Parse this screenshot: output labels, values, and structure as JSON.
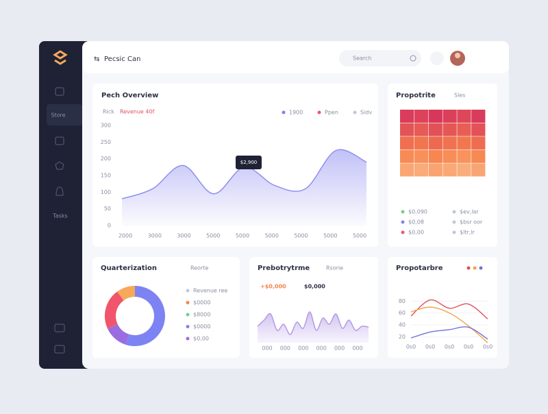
{
  "header": {
    "brand": "Pecsic Can",
    "search": "Search"
  },
  "sidebar": {
    "items": [
      "Store",
      "Tasks"
    ]
  },
  "revenue": {
    "title": "Pech Overview",
    "label": "Rick",
    "highlight": "Revenue 40f",
    "legend": [
      {
        "name": "1900",
        "color": "#7d83f2"
      },
      {
        "name": "Ppen",
        "color": "#f0556b"
      },
      {
        "name": "Sidv",
        "color": "#c3c6d4"
      }
    ],
    "tooltip": "$2,900",
    "chart": {
      "type": "area",
      "categories": [
        "2000",
        "3000",
        "3000",
        "5000",
        "5000",
        "5000",
        "5000",
        "5000",
        "5000"
      ],
      "values": [
        80,
        110,
        180,
        95,
        175,
        120,
        110,
        225,
        190
      ],
      "color": "#8f8ef0",
      "ylim": [
        0,
        300
      ],
      "yticks": [
        0,
        50,
        100,
        150,
        200,
        250,
        300
      ]
    }
  },
  "heatmap": {
    "title": "Propotrite",
    "menu": "Sles",
    "vlim": [
      0,
      100
    ],
    "scale": [
      "#fbd3a8",
      "#f7834c",
      "#d42f5e"
    ],
    "values": [
      [
        92,
        88,
        95,
        90,
        86,
        93
      ],
      [
        78,
        74,
        80,
        76,
        72,
        79
      ],
      [
        62,
        58,
        65,
        60,
        57,
        63
      ],
      [
        45,
        42,
        48,
        44,
        40,
        46
      ],
      [
        28,
        25,
        30,
        27,
        24,
        29
      ]
    ],
    "legend": [
      {
        "name": "$0,090",
        "color": "#6fcf97"
      },
      {
        "name": "$ev,lar",
        "color": "#c3c6d4"
      },
      {
        "name": "$0,08",
        "color": "#7d83f2"
      },
      {
        "name": "$bsr oor",
        "color": "#c3c6d4"
      },
      {
        "name": "$0,00",
        "color": "#f0556b"
      },
      {
        "name": "$ltr,lr",
        "color": "#c3c6d4"
      }
    ]
  },
  "donut": {
    "title": "Quarterization",
    "menu": "Reorte",
    "values": [
      55,
      13,
      22,
      10
    ],
    "colors": [
      "#7d83f2",
      "#9b6ce0",
      "#f0556b",
      "#f7a95b"
    ],
    "legend": [
      {
        "name": "Revenue ree",
        "color": "#c3c6d4"
      },
      {
        "name": "$0000",
        "color": "#f7834c"
      },
      {
        "name": "$8000",
        "color": "#6fcf97"
      },
      {
        "name": "$0000",
        "color": "#7d83f2"
      },
      {
        "name": "$0,00",
        "color": "#9b6ce0"
      }
    ]
  },
  "activity": {
    "title": "Prebotrytrme",
    "menu": "Rsorie",
    "highlights": [
      {
        "name": "+$0,000",
        "color": "#f7834c"
      },
      {
        "name": "$0,000",
        "color": "#2d3044"
      }
    ],
    "chart": {
      "type": "area",
      "categories": [
        "000",
        "000",
        "000",
        "000",
        "000",
        "000"
      ],
      "color": "#b59ae6",
      "values": [
        40,
        55,
        70,
        30,
        45,
        20,
        50,
        35,
        75,
        30,
        60,
        45,
        70,
        35,
        55,
        30,
        40,
        38
      ],
      "ylim": [
        0,
        100
      ]
    }
  },
  "trends": {
    "title": "Propotarbre",
    "chart": {
      "type": "line",
      "categories": [
        "0s0",
        "0s0",
        "0s0",
        "0s0",
        "0s0"
      ],
      "ylim": [
        10,
        100
      ],
      "yticks": [
        20,
        40,
        60,
        80
      ],
      "series": [
        {
          "color": "#e0505a",
          "values": [
            55,
            82,
            68,
            75,
            50
          ]
        },
        {
          "color": "#f2a649",
          "values": [
            62,
            70,
            60,
            38,
            10
          ]
        },
        {
          "color": "#6f73d6",
          "values": [
            18,
            28,
            32,
            36,
            16
          ]
        }
      ]
    }
  }
}
